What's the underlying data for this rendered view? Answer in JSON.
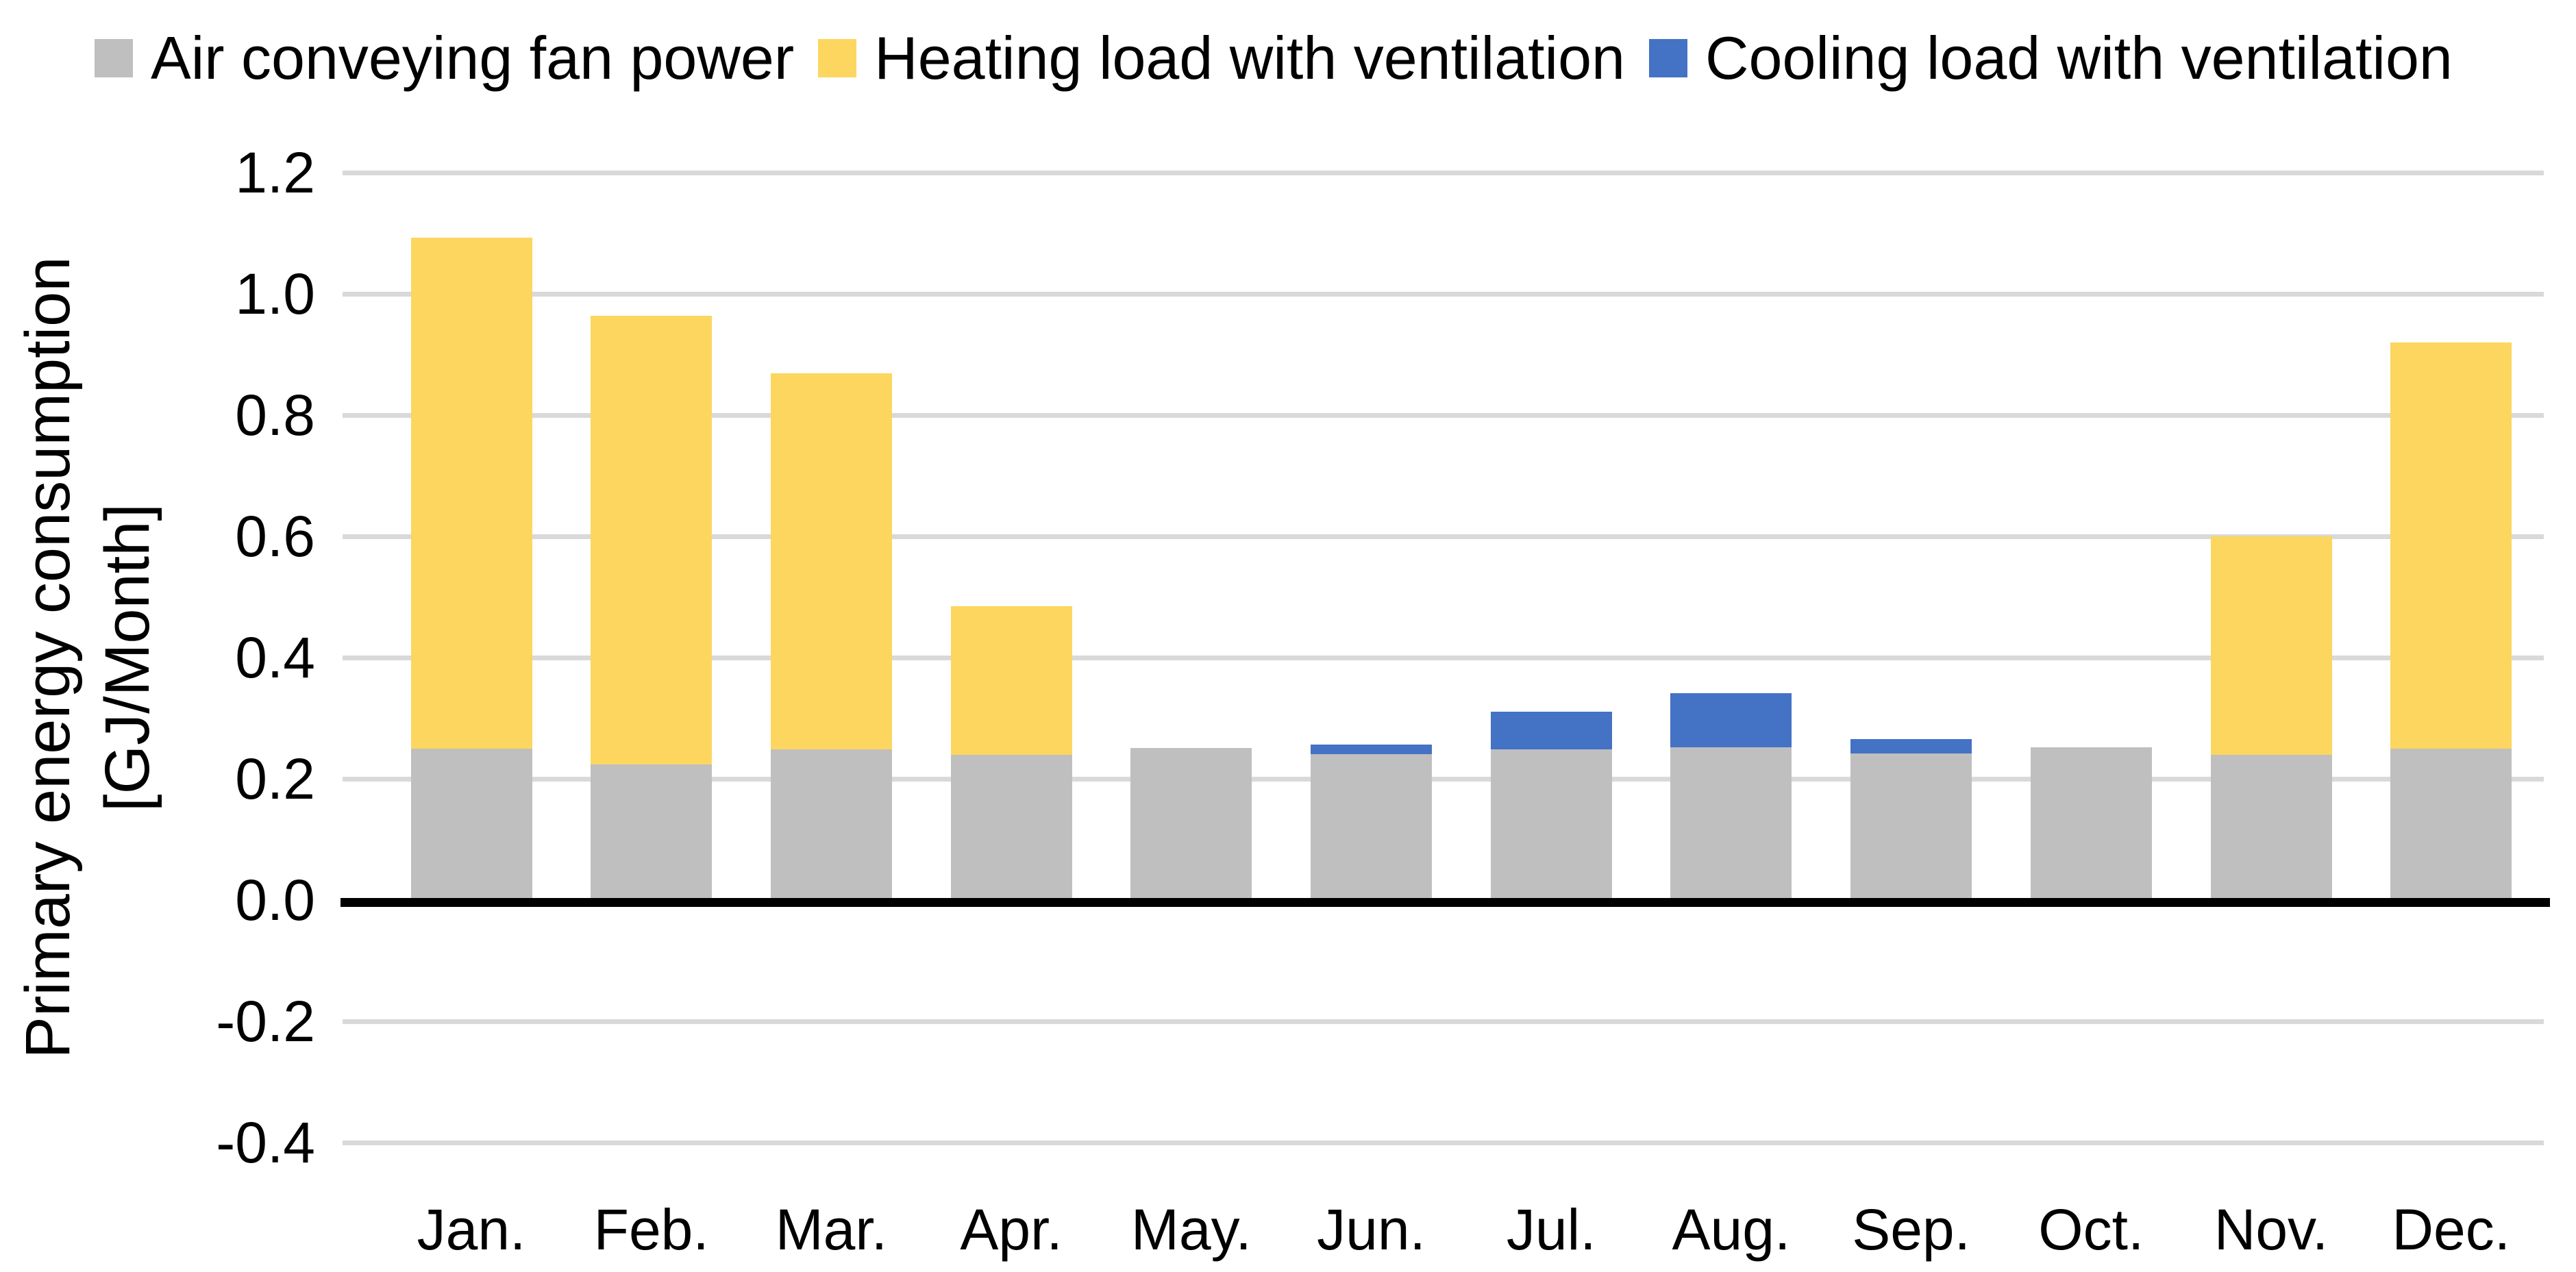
{
  "chart_data": {
    "type": "bar",
    "stacked": true,
    "categories": [
      "Jan.",
      "Feb.",
      "Mar.",
      "Apr.",
      "May.",
      "Jun.",
      "Jul.",
      "Aug.",
      "Sep.",
      "Oct.",
      "Nov.",
      "Dec."
    ],
    "series": [
      {
        "name": "Air conveying fan power",
        "color": "#BFBFBF",
        "values": [
          0.25,
          0.224,
          0.249,
          0.24,
          0.251,
          0.241,
          0.249,
          0.252,
          0.242,
          0.252,
          0.24,
          0.25
        ]
      },
      {
        "name": "Heating load with ventilation",
        "color": "#FCD65F",
        "values": [
          0.843,
          0.74,
          0.62,
          0.245,
          0,
          0,
          0,
          0,
          0,
          0,
          0.36,
          0.67
        ]
      },
      {
        "name": "Cooling load with ventilation",
        "color": "#4472C4",
        "values": [
          0,
          0,
          0,
          0,
          0,
          0.016,
          0.062,
          0.089,
          0.023,
          0,
          0,
          0
        ]
      }
    ],
    "title": "",
    "xlabel": "",
    "ylabel_line1": "Primary energy consumption",
    "ylabel_line2": "[GJ/Month]",
    "ylim": [
      -0.4,
      1.2
    ],
    "ytick_step": 0.2,
    "ytick_labels": [
      "1.2",
      "1.0",
      "0.8",
      "0.6",
      "0.4",
      "0.2",
      "0.0",
      "-0.2",
      "-0.4"
    ],
    "grid": true,
    "legend_position": "top-left",
    "gridline_color": "#D9D9D9",
    "axis_line_color": "#000000",
    "text_color": "#000000"
  }
}
